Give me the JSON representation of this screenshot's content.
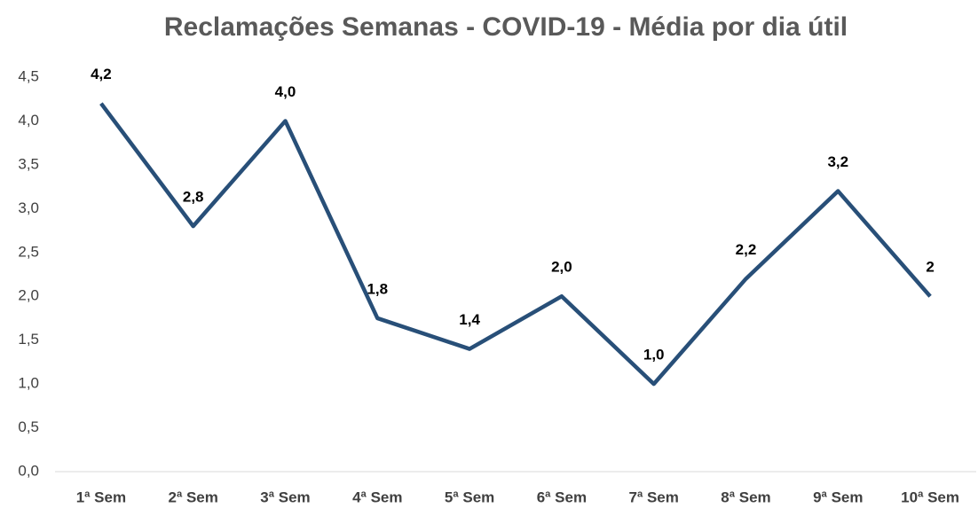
{
  "chart_data": {
    "type": "line",
    "title": "Reclamações  Semanas - COVID-19 - Média por dia útil",
    "categories": [
      "1ª Sem",
      "2ª Sem",
      "3ª Sem",
      "4ª Sem",
      "5ª Sem",
      "6ª Sem",
      "7ª Sem",
      "8ª Sem",
      "9ª Sem",
      "10ª Sem"
    ],
    "series": [
      {
        "name": "Reclamações",
        "color": "#284f78",
        "values": [
          4.2,
          2.8,
          4.0,
          1.75,
          1.4,
          2.0,
          1.0,
          2.2,
          3.2,
          2.0
        ],
        "value_labels": [
          "4,2",
          "2,8",
          "4,0",
          "1,8",
          "1,4",
          "2,0",
          "1,0",
          "2,2",
          "3,2",
          "2"
        ]
      }
    ],
    "ylim": [
      0,
      4.5
    ],
    "yticks": [
      {
        "value": 0,
        "label": "0,0"
      },
      {
        "value": 0.5,
        "label": "0,5"
      },
      {
        "value": 1,
        "label": "1,0"
      },
      {
        "value": 1.5,
        "label": "1,5"
      },
      {
        "value": 2,
        "label": "2,0"
      },
      {
        "value": 2.5,
        "label": "2,5"
      },
      {
        "value": 3,
        "label": "3,0"
      },
      {
        "value": 3.5,
        "label": "3,5"
      },
      {
        "value": 4,
        "label": "4,0"
      },
      {
        "value": 4.5,
        "label": "4,5"
      }
    ],
    "grid": false
  }
}
